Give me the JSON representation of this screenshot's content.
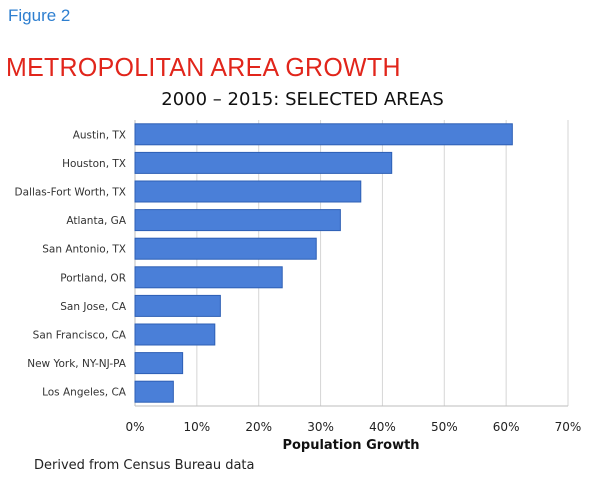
{
  "figure_label": "Figure 2",
  "title": "METROPOLITAN AREA GROWTH",
  "footer": "Derived from Census Bureau data",
  "colors": {
    "bar": "#4a7fd8",
    "bar_edge": "#2d5fb5",
    "title": "#e1251b",
    "figure_label": "#2e7fd0"
  },
  "chart_data": {
    "type": "bar",
    "orientation": "horizontal",
    "title": "2000 – 2015: SELECTED AREAS",
    "xlabel": "Population Growth",
    "ylabel": "",
    "categories": [
      "Austin, TX",
      "Houston, TX",
      "Dallas-Fort Worth, TX",
      "Atlanta, GA",
      "San Antonio, TX",
      "Portland, OR",
      "San Jose, CA",
      "San Francisco, CA",
      "New York, NY-NJ-PA",
      "Los Angeles, CA"
    ],
    "values": [
      61,
      41.5,
      36.5,
      33.2,
      29.3,
      23.8,
      13.8,
      12.9,
      7.7,
      6.2
    ],
    "xlim": [
      0,
      70
    ],
    "xticks": [
      0,
      10,
      20,
      30,
      40,
      50,
      60,
      70
    ],
    "tick_labels": [
      "0%",
      "10%",
      "20%",
      "30%",
      "40%",
      "50%",
      "60%",
      "70%"
    ],
    "grid": true,
    "legend": "none"
  }
}
